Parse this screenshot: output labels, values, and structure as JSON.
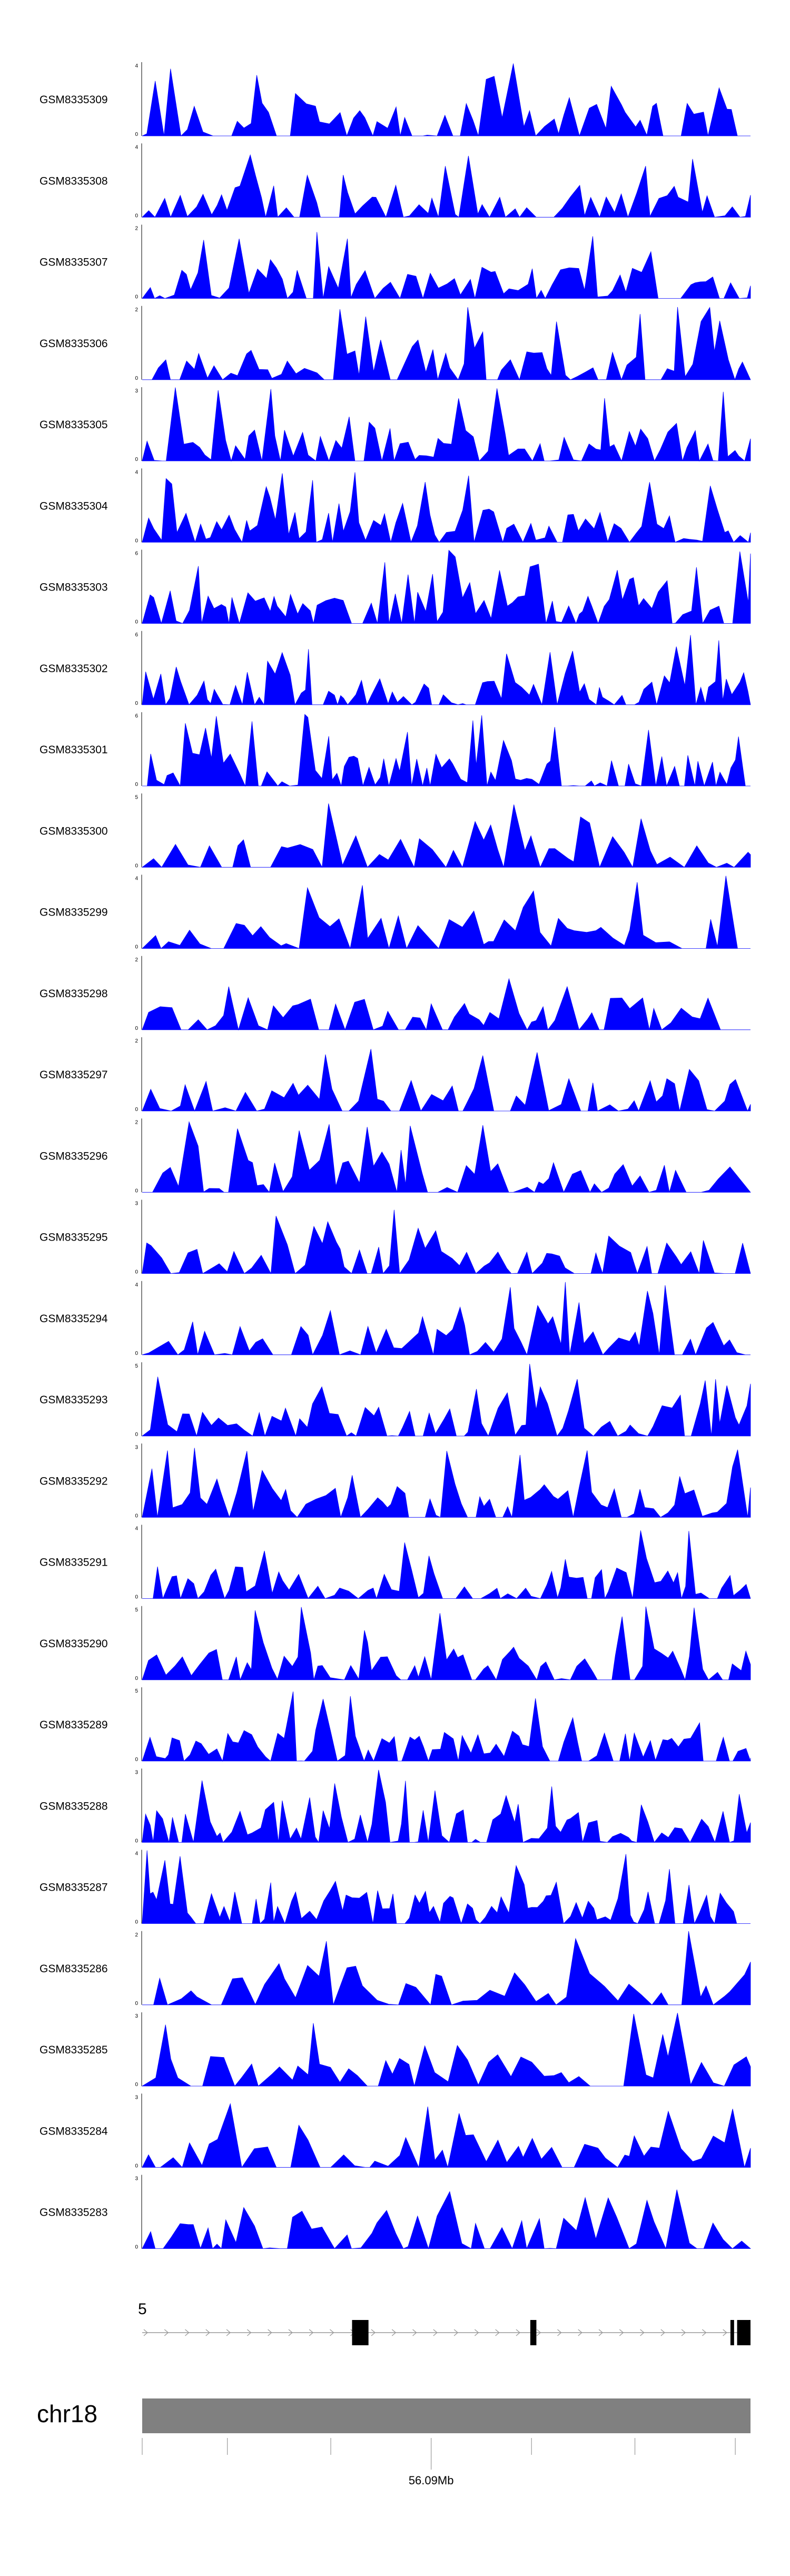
{
  "figure": {
    "bg": "#ffffff",
    "fill_color": "#0000ff",
    "ideogram_color": "#808080"
  },
  "chart_data": {
    "type": "area",
    "tracks": [
      {
        "name": "GSM8335309",
        "ymax": "4",
        "ymin": "0"
      },
      {
        "name": "GSM8335308",
        "ymax": "4",
        "ymin": "0"
      },
      {
        "name": "GSM8335307",
        "ymax": "2",
        "ymin": "0"
      },
      {
        "name": "GSM8335306",
        "ymax": "2",
        "ymin": "0"
      },
      {
        "name": "GSM8335305",
        "ymax": "3",
        "ymin": "0"
      },
      {
        "name": "GSM8335304",
        "ymax": "4",
        "ymin": "0"
      },
      {
        "name": "GSM8335303",
        "ymax": "6",
        "ymin": "0"
      },
      {
        "name": "GSM8335302",
        "ymax": "6",
        "ymin": "0"
      },
      {
        "name": "GSM8335301",
        "ymax": "6",
        "ymin": "0"
      },
      {
        "name": "GSM8335300",
        "ymax": "5",
        "ymin": "0"
      },
      {
        "name": "GSM8335299",
        "ymax": "4",
        "ymin": "0"
      },
      {
        "name": "GSM8335298",
        "ymax": "2",
        "ymin": "0"
      },
      {
        "name": "GSM8335297",
        "ymax": "2",
        "ymin": "0"
      },
      {
        "name": "GSM8335296",
        "ymax": "2",
        "ymin": "0"
      },
      {
        "name": "GSM8335295",
        "ymax": "3",
        "ymin": "0"
      },
      {
        "name": "GSM8335294",
        "ymax": "4",
        "ymin": "0"
      },
      {
        "name": "GSM8335293",
        "ymax": "5",
        "ymin": "0"
      },
      {
        "name": "GSM8335292",
        "ymax": "3",
        "ymin": "0"
      },
      {
        "name": "GSM8335291",
        "ymax": "4",
        "ymin": "0"
      },
      {
        "name": "GSM8335290",
        "ymax": "5",
        "ymin": "0"
      },
      {
        "name": "GSM8335289",
        "ymax": "5",
        "ymin": "0"
      },
      {
        "name": "GSM8335288",
        "ymax": "3",
        "ymin": "0"
      },
      {
        "name": "GSM8335287",
        "ymax": "4",
        "ymin": "0"
      },
      {
        "name": "GSM8335286",
        "ymax": "2",
        "ymin": "0"
      },
      {
        "name": "GSM8335285",
        "ymax": "3",
        "ymin": "0"
      },
      {
        "name": "GSM8335284",
        "ymax": "3",
        "ymin": "0"
      },
      {
        "name": "GSM8335283",
        "ymax": "3",
        "ymin": "0"
      }
    ],
    "gene_track": {
      "label": "5",
      "exons": [
        [
          0.345,
          0.372
        ],
        [
          0.638,
          0.648
        ],
        [
          0.967,
          0.973
        ],
        [
          0.978,
          1.0
        ]
      ],
      "strand_arrows": 30
    },
    "chromosome": "chr18",
    "axis": {
      "label": "56.09Mb",
      "label_tick": 0.475,
      "ticks": [
        0.14,
        0.31,
        0.475,
        0.64,
        0.81,
        0.975
      ]
    },
    "legend": "none",
    "grid": false
  }
}
